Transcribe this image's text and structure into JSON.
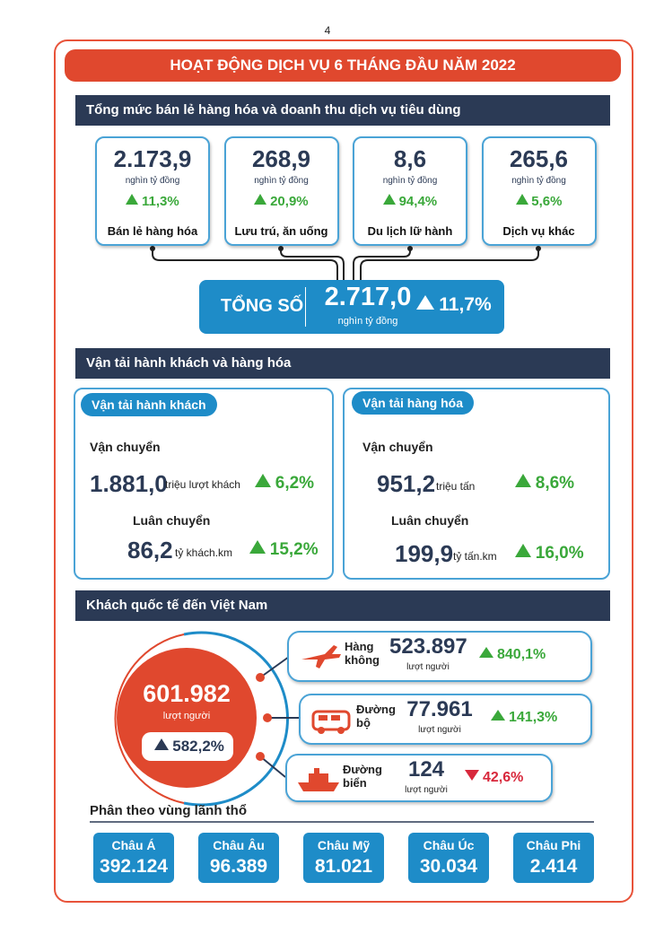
{
  "page_number": "4",
  "title": "HOẠT ĐỘNG DỊCH VỤ 6 THÁNG ĐẦU NĂM 2022",
  "retail": {
    "heading": "Tổng mức bán lẻ hàng hóa và doanh thu dịch vụ tiêu dùng",
    "items": [
      {
        "value": "2.173,9",
        "unit": "nghìn tỷ đồng",
        "growth": "11,3%",
        "trend": "up",
        "label": "Bán lẻ hàng hóa"
      },
      {
        "value": "268,9",
        "unit": "nghìn tỷ đồng",
        "growth": "20,9%",
        "trend": "up",
        "label": "Lưu trú, ăn uống"
      },
      {
        "value": "8,6",
        "unit": "nghìn tỷ đồng",
        "growth": "94,4%",
        "trend": "up",
        "label": "Du lịch lữ hành"
      },
      {
        "value": "265,6",
        "unit": "nghìn tỷ đồng",
        "growth": "5,6%",
        "trend": "up",
        "label": "Dịch vụ khác"
      }
    ],
    "total": {
      "label": "TỔNG SỐ",
      "value": "2.717,0",
      "unit": "nghìn tỷ đồng",
      "growth": "11,7%",
      "trend": "up"
    }
  },
  "transport": {
    "heading": "Vận tải hành khách và hàng hóa",
    "passenger": {
      "tab": "Vận tải hành khách",
      "carriage": {
        "label": "Vận chuyển",
        "value": "1.881,0",
        "unit": "triệu lượt khách",
        "growth": "6,2%",
        "trend": "up"
      },
      "rotation": {
        "label": "Luân chuyển",
        "value": "86,2",
        "unit": "tỷ khách.km",
        "growth": "15,2%",
        "trend": "up"
      }
    },
    "freight": {
      "tab": "Vận tải hàng hóa",
      "carriage": {
        "label": "Vận chuyển",
        "value": "951,2",
        "unit": "triệu tấn",
        "growth": "8,6%",
        "trend": "up"
      },
      "rotation": {
        "label": "Luân chuyển",
        "value": "199,9",
        "unit": "tỷ tấn.km",
        "growth": "16,0%",
        "trend": "up"
      }
    }
  },
  "international": {
    "heading": "Khách quốc tế đến Việt Nam",
    "total": {
      "value": "601.982",
      "unit": "lượt người",
      "growth": "582,2%",
      "trend": "up"
    },
    "modes": [
      {
        "label": "Hàng không",
        "value": "523.897",
        "unit": "lượt người",
        "growth": "840,1%",
        "trend": "up"
      },
      {
        "label": "Đường bộ",
        "value": "77.961",
        "unit": "lượt người",
        "growth": "141,3%",
        "trend": "up"
      },
      {
        "label": "Đường biển",
        "value": "124",
        "unit": "lượt người",
        "growth": "42,6%",
        "trend": "down"
      }
    ],
    "regions_heading": "Phân theo vùng lãnh thổ",
    "regions": [
      {
        "name": "Châu Á",
        "value": "392.124"
      },
      {
        "name": "Châu Âu",
        "value": "96.389"
      },
      {
        "name": "Châu Mỹ",
        "value": "81.021"
      },
      {
        "name": "Châu Úc",
        "value": "30.034"
      },
      {
        "name": "Châu Phi",
        "value": "2.414"
      }
    ]
  }
}
